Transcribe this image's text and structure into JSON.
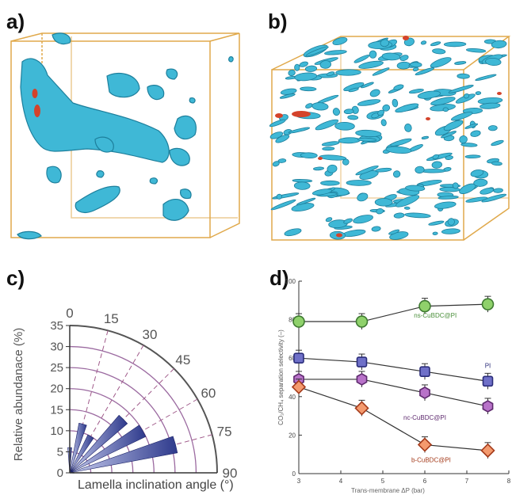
{
  "panels": {
    "a": "a)",
    "b": "b)",
    "c": "c)",
    "d": "d)"
  },
  "colors": {
    "cube_edge": "#e0a94b",
    "blob": "#3fb8d6",
    "blob_dark": "#1d7f9c",
    "red": "#d4432b",
    "polar_arc": "#9b6aa0",
    "polar_bar": "#2e3a8c"
  },
  "chart_data": [
    {
      "type": "bar",
      "variant": "polar-quarter",
      "ylabel": "Relative abundanace (%)",
      "xlabel": "Lamella inclination angle (°)",
      "radial_ticks": [
        "0",
        "5",
        "10",
        "15",
        "20",
        "25",
        "30",
        "35"
      ],
      "angle_ticks": [
        "0",
        "15",
        "30",
        "45",
        "60",
        "75",
        "90"
      ],
      "rlim": [
        0,
        35
      ],
      "bars": [
        {
          "angle": 0,
          "value": 6
        },
        {
          "angle": 15,
          "value": 12
        },
        {
          "angle": 30,
          "value": 10
        },
        {
          "angle": 45,
          "value": 18
        },
        {
          "angle": 60,
          "value": 20
        },
        {
          "angle": 75,
          "value": 26
        },
        {
          "angle": 90,
          "value": 1
        }
      ]
    },
    {
      "type": "line",
      "ylabel": "CO₂/CH₄ separation selectivity (–)",
      "xlabel": "Trans-membrane ΔP (bar)",
      "xlim": [
        3,
        8
      ],
      "ylim": [
        0,
        100
      ],
      "x_ticks": [
        "3",
        "4",
        "5",
        "6",
        "7",
        "8"
      ],
      "y_ticks": [
        "0",
        "20",
        "40",
        "60",
        "80",
        "100"
      ],
      "x": [
        3,
        4.5,
        6,
        7.5
      ],
      "series": [
        {
          "name": "ns-CuBDC@PI",
          "values": [
            79,
            79,
            87,
            88
          ],
          "marker": "circle",
          "fill": "#8fd16b",
          "stroke": "#3f7a32",
          "label_color": "#4a8f3a"
        },
        {
          "name": "PI",
          "values": [
            60,
            58,
            53,
            48
          ],
          "marker": "square",
          "fill": "#6f70c8",
          "stroke": "#2b2d7a",
          "label_color": "#2b2d7a"
        },
        {
          "name": "nc-CuBDC@PI",
          "values": [
            49,
            49,
            42,
            35
          ],
          "marker": "hexagon",
          "fill": "#b872c9",
          "stroke": "#5e2a6e",
          "label_color": "#5e2a6e"
        },
        {
          "name": "b-CuBDC@PI",
          "values": [
            45,
            34,
            15,
            12
          ],
          "marker": "diamond",
          "fill": "#f49a6e",
          "stroke": "#a43a1a",
          "label_color": "#a43a1a"
        }
      ]
    }
  ]
}
